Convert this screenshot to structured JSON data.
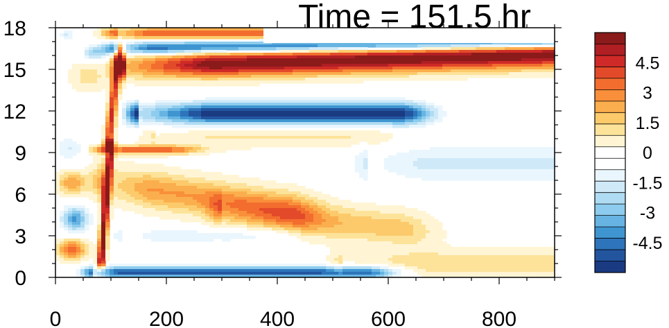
{
  "chart_data": {
    "type": "heatmap",
    "title": "Time = 151.5 hr",
    "xlabel": "",
    "ylabel": "",
    "xlim": [
      0,
      900
    ],
    "ylim": [
      0,
      18
    ],
    "x_ticks": [
      "0",
      "200",
      "400",
      "600",
      "800"
    ],
    "y_ticks": [
      "0",
      "3",
      "6",
      "9",
      "12",
      "15",
      "18"
    ],
    "colorbar": {
      "range": [
        -6,
        6
      ],
      "labels": [
        "4.5",
        "3",
        "1.5",
        "0",
        "-1.5",
        "-3",
        "-4.5"
      ],
      "colors": [
        "#8b1a1a",
        "#b01f24",
        "#cf2a27",
        "#e34a2a",
        "#f26d2e",
        "#f98f3a",
        "#fbae4d",
        "#fcca6b",
        "#fde39a",
        "#fff5d4",
        "#ffffff",
        "#ffffff",
        "#eaf6fd",
        "#cfe9f8",
        "#b0dcf3",
        "#8dccee",
        "#67b4e2",
        "#3f95d0",
        "#2d74bb",
        "#23559f",
        "#1a3a82"
      ]
    },
    "features": [
      {
        "shape": "band",
        "y_center": 15.2,
        "half_width": 0.9,
        "x_start": 130,
        "x_end": 900,
        "peak": 6.0,
        "y_slope": 0.0011,
        "fade_in": 150
      },
      {
        "shape": "band",
        "y_center": 11.8,
        "half_width": 0.8,
        "x_start": 150,
        "x_end": 620,
        "peak": -5.8,
        "y_slope": 0.0,
        "fade_in": 120
      },
      {
        "shape": "band",
        "y_center": 16.5,
        "half_width": 0.45,
        "x_start": 110,
        "x_end": 900,
        "peak": -5.0,
        "y_slope": 0.0006,
        "fade_in": 60
      },
      {
        "shape": "band",
        "y_center": 17.6,
        "half_width": 0.4,
        "x_start": 110,
        "x_end": 420,
        "peak": 3.8,
        "y_slope": 0.0,
        "fade_in": 60
      },
      {
        "shape": "band",
        "y_center": 0.35,
        "half_width": 0.45,
        "x_start": 70,
        "x_end": 560,
        "peak": -5.0,
        "y_slope": 0.0,
        "fade_in": 40
      },
      {
        "shape": "band",
        "y_center": 6.8,
        "half_width": 1.3,
        "x_start": 90,
        "x_end": 420,
        "peak": 2.6,
        "y_slope": -0.006,
        "fade_in": 80
      },
      {
        "shape": "band",
        "y_center": 4.8,
        "half_width": 1.2,
        "x_start": 300,
        "x_end": 620,
        "peak": 1.8,
        "y_slope": -0.004,
        "fade_in": 120
      },
      {
        "shape": "band",
        "y_center": 1.0,
        "half_width": 0.9,
        "x_start": 520,
        "x_end": 900,
        "peak": 1.4,
        "y_slope": 0.0,
        "fade_in": 150
      },
      {
        "shape": "band",
        "y_center": 9.2,
        "half_width": 0.3,
        "x_start": 90,
        "x_end": 200,
        "peak": 3.5,
        "y_slope": 0.0,
        "fade_in": 30
      },
      {
        "shape": "band",
        "y_center": 8.2,
        "half_width": 1.4,
        "x_start": 560,
        "x_end": 900,
        "peak": -1.6,
        "y_slope": 0.0,
        "fade_in": 100
      },
      {
        "shape": "band",
        "y_center": 3.0,
        "half_width": 0.6,
        "x_start": 120,
        "x_end": 380,
        "peak": -1.2,
        "y_slope": 0.0,
        "fade_in": 60
      },
      {
        "shape": "band",
        "y_center": 10.2,
        "half_width": 0.8,
        "x_start": 180,
        "x_end": 560,
        "peak": 1.0,
        "y_slope": 0.0,
        "fade_in": 100
      },
      {
        "shape": "front",
        "x0": 82,
        "x1": 100,
        "y_low": 1.0,
        "y_high": 9.5,
        "peak": 6.0,
        "width": 7
      },
      {
        "shape": "front",
        "x0": 95,
        "x1": 115,
        "y_low": 9.5,
        "y_high": 16.5,
        "peak": 4.5,
        "width": 8
      },
      {
        "shape": "blob",
        "x": 35,
        "y": 4.2,
        "sx": 25,
        "sy": 0.9,
        "peak": -3.8
      },
      {
        "shape": "blob",
        "x": 30,
        "y": 2.0,
        "sx": 25,
        "sy": 0.7,
        "peak": 3.6
      },
      {
        "shape": "blob",
        "x": 30,
        "y": 6.8,
        "sx": 25,
        "sy": 0.8,
        "peak": 2.6
      },
      {
        "shape": "blob",
        "x": 25,
        "y": 9.3,
        "sx": 25,
        "sy": 0.9,
        "peak": -1.5
      },
      {
        "shape": "blob",
        "x": 60,
        "y": 14.5,
        "sx": 30,
        "sy": 1.0,
        "peak": 1.2
      },
      {
        "shape": "blob",
        "x": 70,
        "y": 16.2,
        "sx": 20,
        "sy": 0.5,
        "peak": -2.5
      },
      {
        "shape": "blob",
        "x": 20,
        "y": 17.5,
        "sx": 15,
        "sy": 0.4,
        "peak": -1.5
      }
    ]
  }
}
